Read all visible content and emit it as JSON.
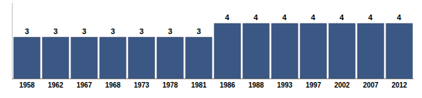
{
  "chart_data": {
    "type": "bar",
    "categories": [
      "1958",
      "1962",
      "1967",
      "1968",
      "1973",
      "1978",
      "1981",
      "1986",
      "1988",
      "1993",
      "1997",
      "2002",
      "2007",
      "2012"
    ],
    "values": [
      3,
      3,
      3,
      3,
      3,
      3,
      3,
      4,
      4,
      4,
      4,
      4,
      4,
      4
    ],
    "color": "#3b5784",
    "ylim": [
      0,
      5.5
    ],
    "grid": false,
    "data_labels": true,
    "tick_labels": "x"
  }
}
